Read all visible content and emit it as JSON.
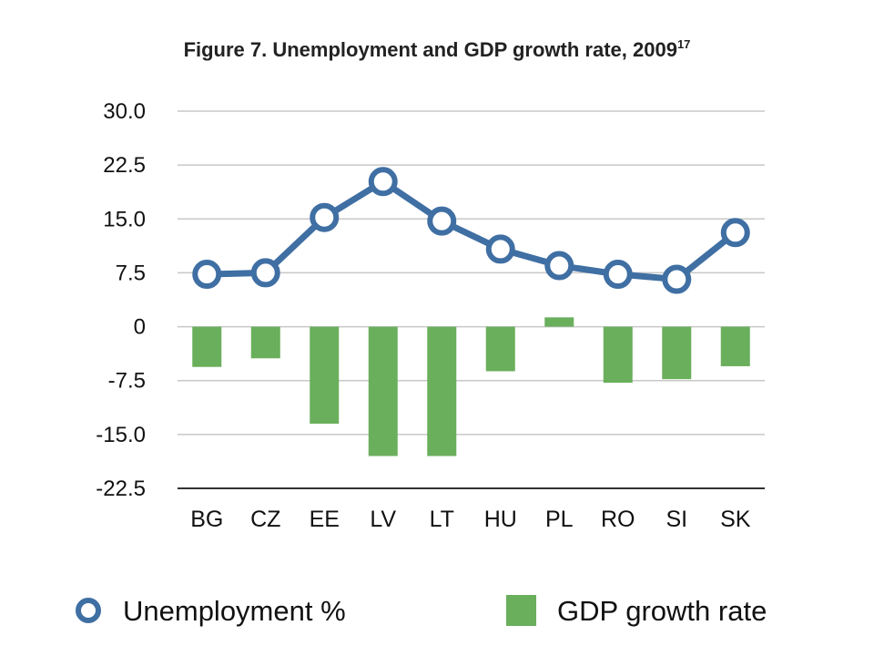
{
  "chart_data": {
    "type": "bar+line",
    "title": "Figure 7. Unemployment and GDP growth rate, 2009",
    "title_superscript": "17",
    "categories": [
      "BG",
      "CZ",
      "EE",
      "LV",
      "LT",
      "HU",
      "PL",
      "RO",
      "SI",
      "SK"
    ],
    "ylim": [
      -22.5,
      30.0
    ],
    "yticks": [
      30.0,
      22.5,
      15.0,
      7.5,
      0,
      -7.5,
      -15.0,
      -22.5
    ],
    "ytick_labels": [
      "30.0",
      "22.5",
      "15.0",
      "7.5",
      "0",
      "-7.5",
      "-15.0",
      "-22.5"
    ],
    "grid": true,
    "legend_position": "bottom",
    "series": [
      {
        "name": "Unemployment %",
        "type": "line",
        "color": "#3f6fa3",
        "values": [
          7.3,
          7.5,
          15.2,
          20.2,
          14.7,
          10.8,
          8.5,
          7.3,
          6.6,
          13.1
        ]
      },
      {
        "name": "GDP growth rate",
        "type": "bar",
        "color": "#6aaf5c",
        "values": [
          -5.6,
          -4.4,
          -13.5,
          -18.0,
          -18.0,
          -6.2,
          1.3,
          -7.8,
          -7.3,
          -5.5
        ]
      }
    ]
  }
}
